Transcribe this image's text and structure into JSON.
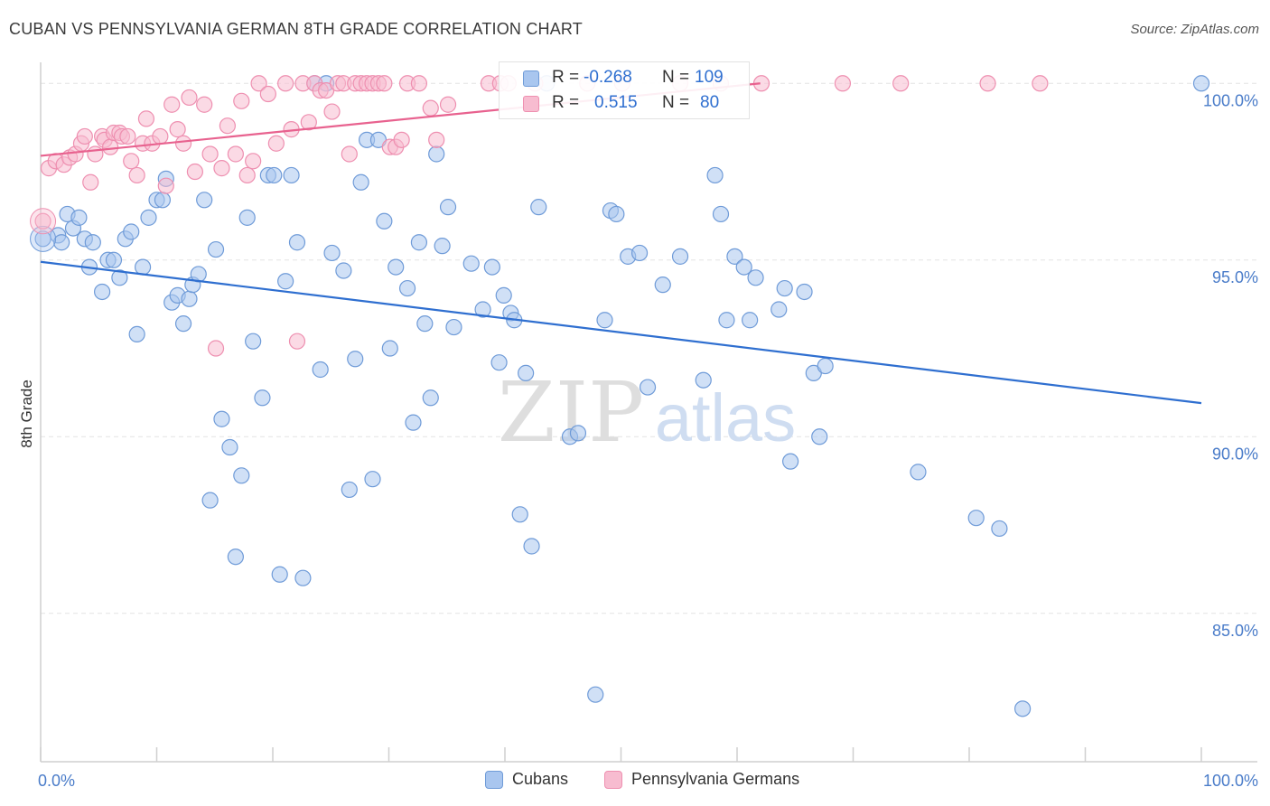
{
  "title": "CUBAN VS PENNSYLVANIA GERMAN 8TH GRADE CORRELATION CHART",
  "source": "Source: ZipAtlas.com",
  "watermark": {
    "zip": "ZIP",
    "atlas": "atlas"
  },
  "stats": [
    {
      "r_label": "R =",
      "r_value": "-0.268",
      "n_label": "N =",
      "n_value": "109"
    },
    {
      "r_label": "R =",
      "r_value": "0.515",
      "n_label": "N =",
      "n_value": "80"
    }
  ],
  "legend": [
    {
      "name": "Cubans",
      "color": "#7aa6e0"
    },
    {
      "name": "Pennsylvania Germans",
      "color": "#f08cad"
    }
  ],
  "colors": {
    "blue_fill": "#a9c6ef",
    "blue_stroke": "#6f9bd8",
    "blue_line": "#2f6fd0",
    "pink_fill": "#f7bcd0",
    "pink_stroke": "#ee8fb0",
    "pink_line": "#e8628f",
    "tick_label": "#4a7cc9"
  },
  "chart_data": {
    "type": "scatter",
    "xlabel": "",
    "ylabel": "8th Grade",
    "x_tick_labels": [
      "0.0%",
      "100.0%"
    ],
    "y_tick_labels": [
      "85.0%",
      "90.0%",
      "95.0%",
      "100.0%"
    ],
    "y_ticks": [
      85,
      90,
      95,
      100
    ],
    "xlim": [
      0,
      100
    ],
    "ylim": [
      80.8,
      100.8
    ],
    "grid": true,
    "series": [
      {
        "name": "Cubans",
        "trend": {
          "x": [
            0,
            100
          ],
          "y": [
            94.95,
            90.95
          ]
        },
        "points": [
          [
            0.2,
            95.6
          ],
          [
            1.5,
            95.7
          ],
          [
            1.8,
            95.5
          ],
          [
            2.3,
            96.3
          ],
          [
            2.8,
            95.9
          ],
          [
            3.3,
            96.2
          ],
          [
            3.8,
            95.6
          ],
          [
            4.2,
            94.8
          ],
          [
            4.5,
            95.5
          ],
          [
            5.3,
            94.1
          ],
          [
            5.8,
            95.0
          ],
          [
            6.3,
            95.0
          ],
          [
            6.8,
            94.5
          ],
          [
            7.3,
            95.6
          ],
          [
            7.8,
            95.8
          ],
          [
            8.3,
            92.9
          ],
          [
            8.8,
            94.8
          ],
          [
            9.3,
            96.2
          ],
          [
            10.0,
            96.7
          ],
          [
            10.5,
            96.7
          ],
          [
            10.8,
            97.3
          ],
          [
            11.3,
            93.8
          ],
          [
            11.8,
            94.0
          ],
          [
            12.3,
            93.2
          ],
          [
            12.8,
            93.9
          ],
          [
            13.1,
            94.3
          ],
          [
            13.6,
            94.6
          ],
          [
            14.1,
            96.7
          ],
          [
            14.6,
            88.2
          ],
          [
            15.1,
            95.3
          ],
          [
            15.6,
            90.5
          ],
          [
            16.3,
            89.7
          ],
          [
            16.8,
            86.6
          ],
          [
            17.3,
            88.9
          ],
          [
            17.8,
            96.2
          ],
          [
            18.3,
            92.7
          ],
          [
            19.1,
            91.1
          ],
          [
            19.6,
            97.4
          ],
          [
            20.1,
            97.4
          ],
          [
            20.6,
            86.1
          ],
          [
            21.1,
            94.4
          ],
          [
            21.6,
            97.4
          ],
          [
            22.1,
            95.5
          ],
          [
            22.6,
            86.0
          ],
          [
            23.6,
            100.0
          ],
          [
            24.1,
            91.9
          ],
          [
            24.6,
            100.0
          ],
          [
            25.1,
            95.2
          ],
          [
            26.1,
            94.7
          ],
          [
            26.6,
            88.5
          ],
          [
            27.1,
            92.2
          ],
          [
            27.6,
            97.2
          ],
          [
            28.1,
            98.4
          ],
          [
            28.6,
            88.8
          ],
          [
            29.1,
            98.4
          ],
          [
            29.6,
            96.1
          ],
          [
            30.1,
            92.5
          ],
          [
            30.6,
            94.8
          ],
          [
            31.6,
            94.2
          ],
          [
            32.1,
            90.4
          ],
          [
            32.6,
            95.5
          ],
          [
            33.1,
            93.2
          ],
          [
            33.6,
            91.1
          ],
          [
            34.1,
            98.0
          ],
          [
            34.6,
            95.4
          ],
          [
            35.1,
            96.5
          ],
          [
            35.6,
            93.1
          ],
          [
            37.1,
            94.9
          ],
          [
            38.1,
            93.6
          ],
          [
            38.9,
            94.8
          ],
          [
            39.5,
            92.1
          ],
          [
            39.9,
            94.0
          ],
          [
            40.5,
            93.5
          ],
          [
            40.8,
            93.3
          ],
          [
            41.3,
            87.8
          ],
          [
            41.8,
            91.8
          ],
          [
            42.3,
            86.9
          ],
          [
            42.9,
            96.5
          ],
          [
            43.6,
            100.0
          ],
          [
            45.6,
            90.0
          ],
          [
            46.3,
            90.1
          ],
          [
            47.8,
            82.7
          ],
          [
            48.6,
            93.3
          ],
          [
            49.1,
            96.4
          ],
          [
            49.6,
            96.3
          ],
          [
            50.6,
            95.1
          ],
          [
            51.6,
            95.2
          ],
          [
            52.3,
            91.4
          ],
          [
            53.6,
            94.3
          ],
          [
            55.1,
            95.1
          ],
          [
            57.1,
            91.6
          ],
          [
            58.1,
            97.4
          ],
          [
            58.6,
            96.3
          ],
          [
            59.1,
            93.3
          ],
          [
            59.8,
            95.1
          ],
          [
            60.6,
            94.8
          ],
          [
            61.1,
            93.3
          ],
          [
            61.6,
            94.5
          ],
          [
            63.6,
            93.6
          ],
          [
            64.1,
            94.2
          ],
          [
            64.6,
            89.3
          ],
          [
            65.8,
            94.1
          ],
          [
            66.6,
            91.8
          ],
          [
            67.1,
            90.0
          ],
          [
            67.6,
            92.0
          ],
          [
            75.6,
            89.0
          ],
          [
            80.6,
            87.7
          ],
          [
            82.6,
            87.4
          ],
          [
            84.6,
            82.3
          ],
          [
            100.0,
            100.0
          ]
        ]
      },
      {
        "name": "Pennsylvania Germans",
        "trend": {
          "x": [
            0,
            62
          ],
          "y": [
            97.95,
            100.0
          ]
        },
        "points": [
          [
            0.2,
            96.1
          ],
          [
            0.7,
            97.6
          ],
          [
            1.3,
            97.8
          ],
          [
            2.0,
            97.7
          ],
          [
            2.5,
            97.9
          ],
          [
            3.0,
            98.0
          ],
          [
            3.5,
            98.3
          ],
          [
            3.8,
            98.5
          ],
          [
            4.3,
            97.2
          ],
          [
            4.7,
            98.0
          ],
          [
            5.3,
            98.5
          ],
          [
            5.5,
            98.4
          ],
          [
            6.0,
            98.2
          ],
          [
            6.3,
            98.6
          ],
          [
            6.8,
            98.6
          ],
          [
            7.0,
            98.5
          ],
          [
            7.5,
            98.5
          ],
          [
            7.8,
            97.8
          ],
          [
            8.3,
            97.4
          ],
          [
            8.8,
            98.3
          ],
          [
            9.1,
            99.0
          ],
          [
            9.6,
            98.3
          ],
          [
            10.3,
            98.5
          ],
          [
            10.8,
            97.1
          ],
          [
            11.3,
            99.4
          ],
          [
            11.8,
            98.7
          ],
          [
            12.3,
            98.3
          ],
          [
            12.8,
            99.6
          ],
          [
            13.3,
            97.5
          ],
          [
            14.1,
            99.4
          ],
          [
            14.6,
            98.0
          ],
          [
            15.1,
            92.5
          ],
          [
            15.6,
            97.6
          ],
          [
            16.1,
            98.8
          ],
          [
            16.8,
            98.0
          ],
          [
            17.3,
            99.5
          ],
          [
            17.8,
            97.4
          ],
          [
            18.3,
            97.8
          ],
          [
            18.8,
            100.0
          ],
          [
            19.6,
            99.7
          ],
          [
            20.3,
            98.3
          ],
          [
            21.1,
            100.0
          ],
          [
            21.6,
            98.7
          ],
          [
            22.1,
            92.7
          ],
          [
            22.6,
            100.0
          ],
          [
            23.1,
            98.9
          ],
          [
            23.6,
            100.0
          ],
          [
            24.1,
            99.8
          ],
          [
            24.6,
            99.8
          ],
          [
            25.1,
            99.2
          ],
          [
            25.6,
            100.0
          ],
          [
            26.1,
            100.0
          ],
          [
            26.6,
            98.0
          ],
          [
            27.1,
            100.0
          ],
          [
            27.6,
            100.0
          ],
          [
            28.1,
            100.0
          ],
          [
            28.6,
            100.0
          ],
          [
            29.1,
            100.0
          ],
          [
            29.6,
            100.0
          ],
          [
            30.1,
            98.2
          ],
          [
            30.6,
            98.2
          ],
          [
            31.1,
            98.4
          ],
          [
            31.6,
            100.0
          ],
          [
            32.6,
            100.0
          ],
          [
            33.6,
            99.3
          ],
          [
            34.1,
            98.4
          ],
          [
            35.1,
            99.4
          ],
          [
            38.6,
            100.0
          ],
          [
            39.6,
            100.0
          ],
          [
            40.3,
            100.0
          ],
          [
            42.6,
            100.0
          ],
          [
            47.1,
            100.0
          ],
          [
            50.1,
            100.0
          ],
          [
            55.1,
            100.0
          ],
          [
            58.6,
            100.0
          ],
          [
            62.1,
            100.0
          ],
          [
            69.1,
            100.0
          ],
          [
            74.1,
            100.0
          ],
          [
            81.6,
            100.0
          ],
          [
            86.1,
            100.0
          ]
        ]
      }
    ]
  }
}
